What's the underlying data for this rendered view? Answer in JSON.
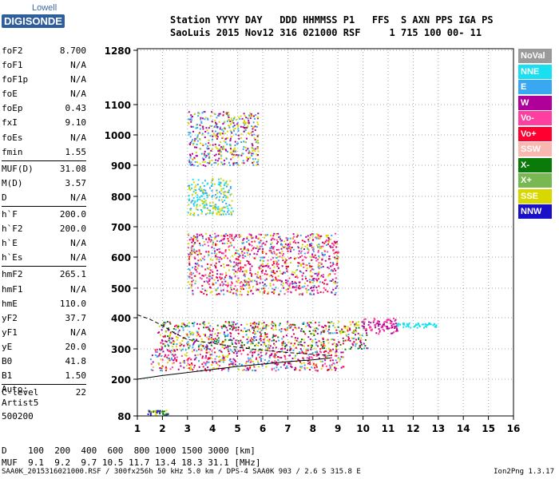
{
  "logo": {
    "line1": "Lowell",
    "line2": "DIGISONDE"
  },
  "header": {
    "line1": "Station YYYY DAY   DDD HHMMSS P1   FFS  S AXN PPS IGA PS",
    "line2": "SaoLuis 2015 Nov12 316 021000 RSF     1 715 100 00- 11"
  },
  "params": [
    {
      "name": "foF2",
      "value": "8.700"
    },
    {
      "name": "foF1",
      "value": "N/A"
    },
    {
      "name": "foF1p",
      "value": "N/A"
    },
    {
      "name": "foE",
      "value": "N/A"
    },
    {
      "name": "foEp",
      "value": "0.43"
    },
    {
      "name": "fxI",
      "value": "9.10"
    },
    {
      "name": "foEs",
      "value": "N/A"
    },
    {
      "name": "fmin",
      "value": "1.55"
    },
    {
      "name": "MUF(D)",
      "value": "31.08"
    },
    {
      "name": "M(D)",
      "value": "3.57"
    },
    {
      "name": "D",
      "value": "N/A"
    },
    {
      "name": "h`F",
      "value": "200.0"
    },
    {
      "name": "h`F2",
      "value": "200.0"
    },
    {
      "name": "h`E",
      "value": "N/A"
    },
    {
      "name": "h`Es",
      "value": "N/A"
    },
    {
      "name": "hmF2",
      "value": "265.1"
    },
    {
      "name": "hmF1",
      "value": "N/A"
    },
    {
      "name": "hmE",
      "value": "110.0"
    },
    {
      "name": "yF2",
      "value": "37.7"
    },
    {
      "name": "yF1",
      "value": "N/A"
    },
    {
      "name": "yE",
      "value": "20.0"
    },
    {
      "name": "B0",
      "value": "41.8"
    },
    {
      "name": "B1",
      "value": "1.50"
    },
    {
      "name": "C-level",
      "value": "22"
    }
  ],
  "auto": {
    "line1": "Auto:",
    "line2": "Artist5",
    "line3": "500200"
  },
  "footer": {
    "dline": "D    100  200  400  600  800 1000 1500 3000 [km]",
    "mufline": "MUF  9.1  9.2  9.7 10.5 11.7 13.4 18.3 31.1 [MHz]"
  },
  "bottom": {
    "left": "SAA0K_2015316021000.RSF / 300fx256h 50 kHz 5.0 km / DPS-4 SAA0K 903 / 2.6 S 315.8 E",
    "right": "Ion2Png 1.3.17"
  },
  "legend": [
    {
      "label": "NoVal",
      "color": "#9a9a9a"
    },
    {
      "label": "NNE",
      "color": "#18e0f0"
    },
    {
      "label": "E",
      "color": "#3aa8f0"
    },
    {
      "label": "W",
      "color": "#b0009a"
    },
    {
      "label": "Vo-",
      "color": "#ff3f9f"
    },
    {
      "label": "Vo+",
      "color": "#ff0030"
    },
    {
      "label": "SSW",
      "color": "#f8b8b0"
    },
    {
      "label": "X-",
      "color": "#0a7a0a"
    },
    {
      "label": "X+",
      "color": "#78b850"
    },
    {
      "label": "SSE",
      "color": "#d8d800"
    },
    {
      "label": "NNW",
      "color": "#1a10c8"
    }
  ],
  "chart_data": {
    "type": "scatter",
    "xlim": [
      1,
      16
    ],
    "ylim": [
      80,
      1280
    ],
    "x_ticks": [
      1,
      2,
      3,
      4,
      5,
      6,
      7,
      8,
      9,
      10,
      11,
      12,
      13,
      14,
      15,
      16
    ],
    "y_ticks": [
      80,
      200,
      300,
      400,
      500,
      600,
      700,
      800,
      900,
      1000,
      1100,
      1280
    ],
    "grid": true,
    "trace": [
      {
        "x": 1.0,
        "y": 200
      },
      {
        "x": 2.0,
        "y": 212
      },
      {
        "x": 3.0,
        "y": 222
      },
      {
        "x": 4.0,
        "y": 232
      },
      {
        "x": 5.0,
        "y": 242
      },
      {
        "x": 6.0,
        "y": 250
      },
      {
        "x": 7.0,
        "y": 258
      },
      {
        "x": 8.0,
        "y": 264
      },
      {
        "x": 8.7,
        "y": 270
      }
    ],
    "profile": [
      {
        "x": 1.0,
        "y": 410
      },
      {
        "x": 1.5,
        "y": 395
      },
      {
        "x": 2.0,
        "y": 375
      },
      {
        "x": 2.5,
        "y": 350
      },
      {
        "x": 3.0,
        "y": 330
      },
      {
        "x": 4.0,
        "y": 318
      },
      {
        "x": 5.0,
        "y": 305
      },
      {
        "x": 6.0,
        "y": 296
      },
      {
        "x": 7.0,
        "y": 288
      },
      {
        "x": 8.0,
        "y": 282
      },
      {
        "x": 8.7,
        "y": 278
      }
    ],
    "echo_regions": [
      {
        "x": [
          1.5,
          9.2
        ],
        "y": [
          230,
          300
        ],
        "colors": [
          "#ff0030",
          "#ff3f9f",
          "#b0009a",
          "#d8d800",
          "#3aa8f0"
        ]
      },
      {
        "x": [
          1.8,
          10.2
        ],
        "y": [
          300,
          390
        ],
        "colors": [
          "#b0009a",
          "#d8d800",
          "#ff0030",
          "#3aa8f0",
          "#0a7a0a"
        ]
      },
      {
        "x": [
          10.0,
          11.4
        ],
        "y": [
          350,
          400
        ],
        "colors": [
          "#b0009a",
          "#ff3f9f"
        ]
      },
      {
        "x": [
          11.3,
          12.9
        ],
        "y": [
          370,
          385
        ],
        "colors": [
          "#18e0f0"
        ]
      },
      {
        "x": [
          3.0,
          9.0
        ],
        "y": [
          480,
          680
        ],
        "colors": [
          "#d8d800",
          "#b0009a",
          "#ff3f9f",
          "#3aa8f0",
          "#ff0030"
        ]
      },
      {
        "x": [
          3.0,
          4.8
        ],
        "y": [
          740,
          860
        ],
        "colors": [
          "#3aa8f0",
          "#18e0f0",
          "#d8d800"
        ]
      },
      {
        "x": [
          3.0,
          5.8
        ],
        "y": [
          900,
          1080
        ],
        "colors": [
          "#3aa8f0",
          "#d8d800",
          "#b0009a"
        ]
      },
      {
        "x": [
          1.4,
          2.2
        ],
        "y": [
          85,
          100
        ],
        "colors": [
          "#1a10c8",
          "#0a7a0a",
          "#d8d800"
        ]
      }
    ]
  }
}
